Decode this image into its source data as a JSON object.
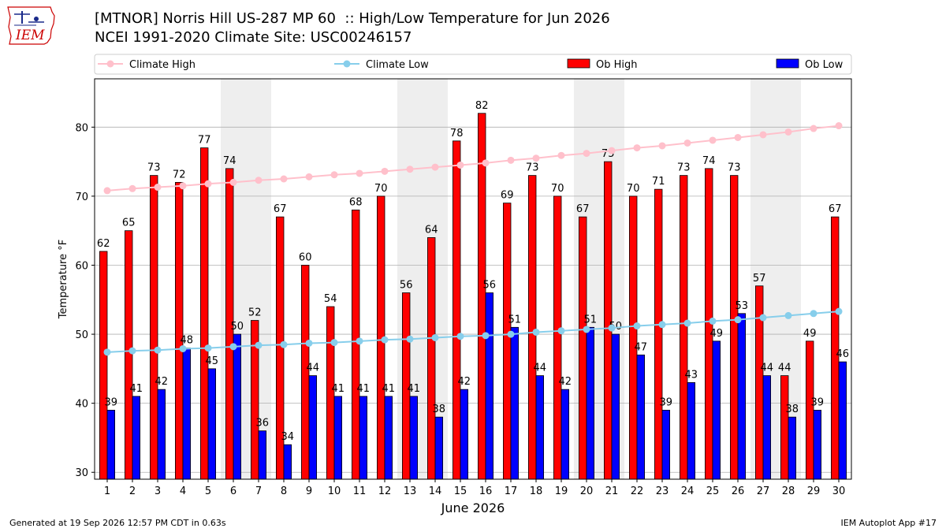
{
  "header": {
    "logo_text": "IEM",
    "title_line1": "[MTNOR] Norris Hill US-287 MP 60  :: High/Low Temperature for Jun 2026",
    "title_line2": "NCEI 1991-2020 Climate Site: USC00246157"
  },
  "footer": {
    "generated": "Generated at 19 Sep 2026 12:57 PM CDT in 0.63s",
    "app": "IEM Autoplot App #17"
  },
  "chart_data": {
    "type": "bar",
    "xlabel": "June 2026",
    "ylabel": "Temperature °F",
    "ylim": [
      29,
      87
    ],
    "yticks": [
      30,
      40,
      50,
      60,
      70,
      80
    ],
    "grid": true,
    "legend_position": "top",
    "weekend_shading": [
      [
        6,
        7
      ],
      [
        13,
        14
      ],
      [
        20,
        21
      ],
      [
        27,
        28
      ]
    ],
    "categories": [
      "1",
      "2",
      "3",
      "4",
      "5",
      "6",
      "7",
      "8",
      "9",
      "10",
      "11",
      "12",
      "13",
      "14",
      "15",
      "16",
      "17",
      "18",
      "19",
      "20",
      "21",
      "22",
      "23",
      "24",
      "25",
      "26",
      "27",
      "28",
      "29",
      "30"
    ],
    "colors": {
      "climate_high": "#ffc0cb",
      "climate_low": "#87ceeb",
      "ob_high": "#ff0000",
      "ob_low": "#0000ff",
      "weekend": "#eeeeee"
    },
    "series": [
      {
        "name": "Climate High",
        "kind": "line",
        "values": [
          70.8,
          71.1,
          71.3,
          71.5,
          71.8,
          72.0,
          72.3,
          72.5,
          72.8,
          73.1,
          73.3,
          73.6,
          73.9,
          74.2,
          74.5,
          74.8,
          75.2,
          75.5,
          75.9,
          76.2,
          76.6,
          77.0,
          77.3,
          77.7,
          78.1,
          78.5,
          78.9,
          79.3,
          79.8,
          80.2
        ]
      },
      {
        "name": "Climate Low",
        "kind": "line",
        "values": [
          47.4,
          47.6,
          47.7,
          47.9,
          48.0,
          48.2,
          48.4,
          48.5,
          48.7,
          48.8,
          49.0,
          49.2,
          49.3,
          49.5,
          49.7,
          49.8,
          50.0,
          50.3,
          50.5,
          50.7,
          50.9,
          51.2,
          51.4,
          51.6,
          51.9,
          52.1,
          52.4,
          52.7,
          53.0,
          53.3
        ]
      },
      {
        "name": "Ob High",
        "kind": "bar",
        "values": [
          62,
          65,
          73,
          72,
          77,
          74,
          52,
          67,
          60,
          54,
          68,
          70,
          56,
          64,
          78,
          82,
          69,
          73,
          70,
          67,
          75,
          70,
          71,
          73,
          74,
          73,
          57,
          44,
          49,
          67
        ]
      },
      {
        "name": "Ob Low",
        "kind": "bar",
        "values": [
          39,
          41,
          42,
          48,
          45,
          50,
          36,
          34,
          44,
          41,
          41,
          41,
          41,
          38,
          42,
          56,
          51,
          44,
          42,
          51,
          50,
          47,
          39,
          43,
          49,
          53,
          44,
          38,
          39,
          46
        ]
      }
    ]
  }
}
